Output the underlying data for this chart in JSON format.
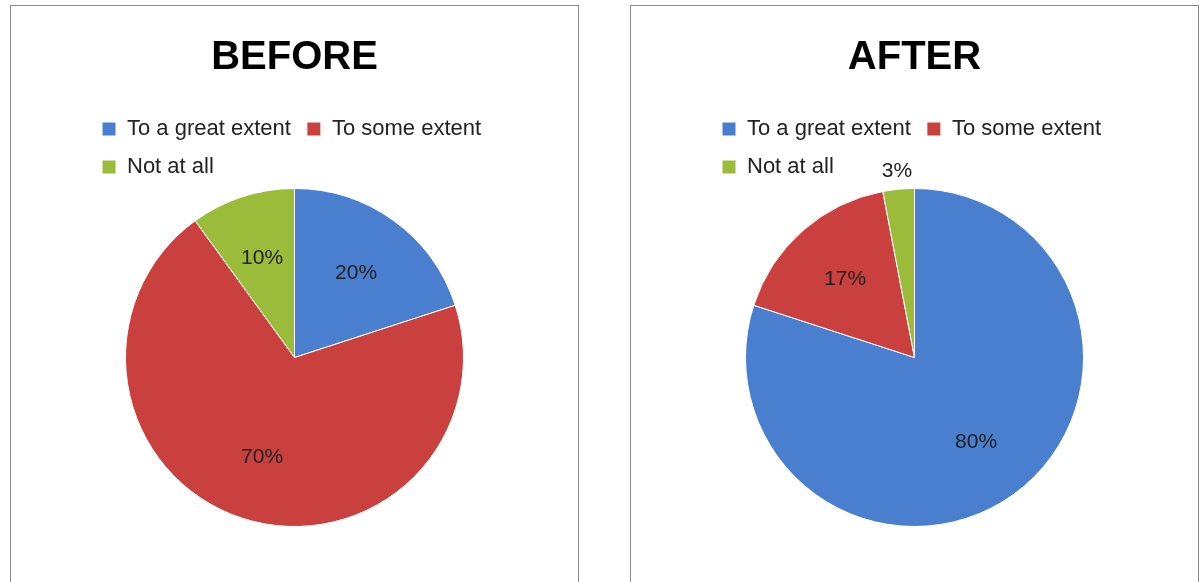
{
  "chart_data": [
    {
      "type": "pie",
      "title": "BEFORE",
      "categories": [
        "To a great extent",
        "To some extent",
        "Not at all"
      ],
      "values": [
        20,
        70,
        10
      ],
      "value_labels": [
        "20%",
        "70%",
        "10%"
      ],
      "colors": [
        "#4a7fd0",
        "#c9403e",
        "#9bbb3b"
      ],
      "legend": "top"
    },
    {
      "type": "pie",
      "title": "AFTER",
      "categories": [
        "To a great extent",
        "To some extent",
        "Not at all"
      ],
      "values": [
        80,
        17,
        3
      ],
      "value_labels": [
        "80%",
        "17%",
        "3%"
      ],
      "colors": [
        "#4a7fd0",
        "#c9403e",
        "#9bbb3b"
      ],
      "legend": "top"
    }
  ]
}
